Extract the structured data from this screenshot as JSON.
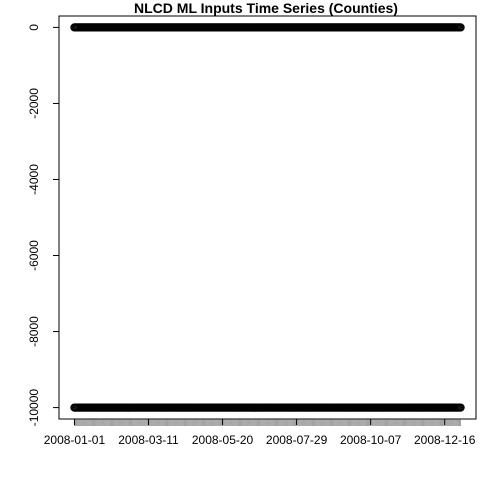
{
  "chart_data": {
    "type": "scatter",
    "title": "NLCD ML Inputs Time Series (Counties)",
    "xlabel": "",
    "ylabel": "",
    "x_range": [
      "2008-01-01",
      "2008-12-31"
    ],
    "ylim": [
      -10300,
      300
    ],
    "x_ticks": [
      "2008-01-01",
      "2008-03-11",
      "2008-05-20",
      "2008-07-29",
      "2008-10-07",
      "2008-12-16"
    ],
    "y_ticks": [
      0,
      -2000,
      -4000,
      -6000,
      -8000,
      -10000
    ],
    "grid": false,
    "legend": "none",
    "point_color": "#000000",
    "series": [
      {
        "x_start": "2008-01-01",
        "x_end": "2008-12-31",
        "y": 0
      },
      {
        "x_start": "2008-01-01",
        "x_end": "2008-12-31",
        "y": -10000
      }
    ]
  }
}
